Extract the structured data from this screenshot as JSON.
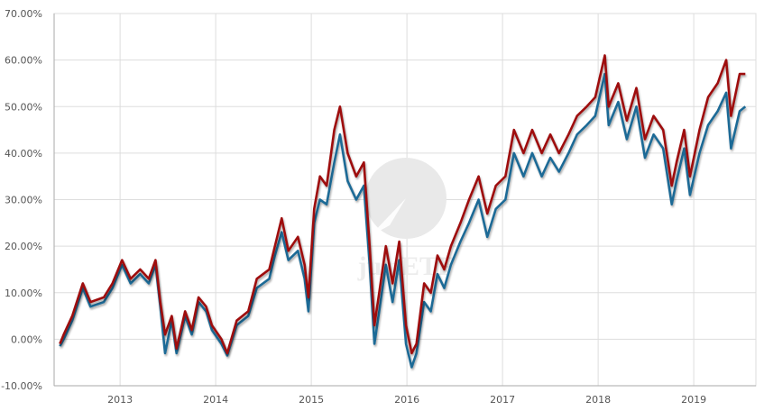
{
  "chart_data": {
    "type": "line",
    "title": "",
    "xlabel": "",
    "ylabel": "",
    "xlim": [
      2012.31,
      2019.65
    ],
    "ylim": [
      -10,
      70
    ],
    "grid": true,
    "watermark": "justETF",
    "x_ticks": [
      {
        "value": 2013,
        "label": "2013"
      },
      {
        "value": 2014,
        "label": "2014"
      },
      {
        "value": 2015,
        "label": "2015"
      },
      {
        "value": 2016,
        "label": "2016"
      },
      {
        "value": 2017,
        "label": "2017"
      },
      {
        "value": 2018,
        "label": "2018"
      },
      {
        "value": 2019,
        "label": "2019"
      }
    ],
    "y_ticks": [
      {
        "value": 70,
        "label": "70.00%"
      },
      {
        "value": 60,
        "label": "60.00%"
      },
      {
        "value": 50,
        "label": "50.00%"
      },
      {
        "value": 40,
        "label": "40.00%"
      },
      {
        "value": 30,
        "label": "30.00%"
      },
      {
        "value": 20,
        "label": "20.00%"
      },
      {
        "value": 10,
        "label": "10.00%"
      },
      {
        "value": 0,
        "label": "0.00%"
      },
      {
        "value": -10,
        "label": "-10.00%"
      }
    ],
    "x": [
      2012.37,
      2012.41,
      2012.5,
      2012.61,
      2012.69,
      2012.83,
      2012.92,
      2013.02,
      2013.11,
      2013.21,
      2013.3,
      2013.37,
      2013.42,
      2013.47,
      2013.54,
      2013.59,
      2013.68,
      2013.75,
      2013.82,
      2013.9,
      2013.96,
      2014.06,
      2014.12,
      2014.22,
      2014.34,
      2014.43,
      2014.56,
      2014.62,
      2014.69,
      2014.76,
      2014.86,
      2014.93,
      2014.97,
      2015.03,
      2015.09,
      2015.16,
      2015.24,
      2015.3,
      2015.38,
      2015.47,
      2015.55,
      2015.61,
      2015.66,
      2015.71,
      2015.78,
      2015.85,
      2015.92,
      2015.99,
      2016.05,
      2016.1,
      2016.18,
      2016.25,
      2016.32,
      2016.39,
      2016.46,
      2016.56,
      2016.65,
      2016.75,
      2016.84,
      2016.93,
      2017.03,
      2017.12,
      2017.22,
      2017.31,
      2017.41,
      2017.5,
      2017.59,
      2017.69,
      2017.78,
      2017.88,
      2017.97,
      2018.07,
      2018.11,
      2018.21,
      2018.3,
      2018.4,
      2018.49,
      2018.58,
      2018.68,
      2018.77,
      2018.82,
      2018.9,
      2018.96,
      2019.06,
      2019.15,
      2019.25,
      2019.34,
      2019.39,
      2019.48,
      2019.54
    ],
    "series": [
      {
        "name": "series-red",
        "color": "#9e0b0f",
        "values": [
          -1,
          1,
          5,
          12,
          8,
          9,
          12,
          17,
          13,
          15,
          13,
          17,
          8,
          1,
          5,
          -2,
          6,
          2,
          9,
          7,
          3,
          0,
          -3,
          4,
          6,
          13,
          15,
          20,
          26,
          19,
          22,
          16,
          9,
          28,
          35,
          33,
          45,
          50,
          40,
          35,
          38,
          20,
          3,
          10,
          20,
          12,
          21,
          3,
          -3,
          -1,
          12,
          10,
          18,
          15,
          20,
          25,
          30,
          35,
          27,
          33,
          35,
          45,
          40,
          45,
          40,
          44,
          40,
          44,
          48,
          50,
          52,
          61,
          50,
          55,
          47,
          54,
          43,
          48,
          45,
          33,
          38,
          45,
          35,
          45,
          52,
          55,
          60,
          48,
          57,
          57
        ]
      },
      {
        "name": "series-blue",
        "color": "#1f6a96",
        "values": [
          -1.5,
          0,
          4,
          11,
          7,
          8,
          11,
          16,
          12,
          14,
          12,
          16,
          7,
          -3,
          4,
          -3,
          5,
          1,
          8,
          6,
          2,
          -1,
          -3.5,
          3,
          5,
          11,
          13,
          18,
          23,
          17,
          19,
          13,
          6,
          25,
          30,
          29,
          38,
          44,
          34,
          30,
          33,
          16,
          -1,
          6,
          16,
          8,
          17,
          -1,
          -6,
          -3,
          8,
          6,
          14,
          11,
          16,
          21,
          25,
          30,
          22,
          28,
          30,
          40,
          35,
          40,
          35,
          39,
          36,
          40,
          44,
          46,
          48,
          57,
          46,
          51,
          43,
          50,
          39,
          44,
          41,
          29,
          34,
          41,
          31,
          40,
          46,
          49,
          53,
          41,
          49,
          50
        ]
      }
    ]
  }
}
